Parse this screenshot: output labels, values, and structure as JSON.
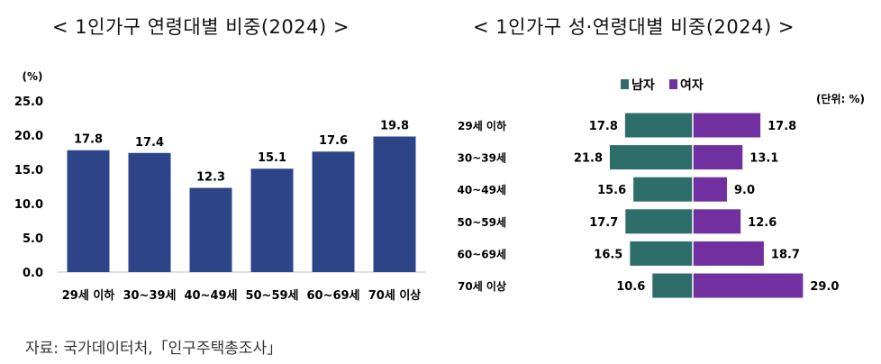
{
  "source": "자료: 국가데이터처,「인구주택총조사」",
  "colors": {
    "bar": "#2e4488",
    "male": "#2e6e6a",
    "female": "#7030a0"
  },
  "chart_data": [
    {
      "type": "bar",
      "title": "< 1인가구 연령대별 비중(2024) >",
      "ylabel": "(%)",
      "categories": [
        "29세 이하",
        "30~39세",
        "40~49세",
        "50~59세",
        "60~69세",
        "70세 이상"
      ],
      "values": [
        17.8,
        17.4,
        12.3,
        15.1,
        17.6,
        19.8
      ],
      "value_labels": [
        "17.8",
        "17.4",
        "12.3",
        "15.1",
        "17.6",
        "19.8"
      ],
      "yticks": [
        "0.0",
        "5.0",
        "10.0",
        "15.0",
        "20.0",
        "25.0"
      ],
      "ylim": [
        0,
        25
      ]
    },
    {
      "type": "bar",
      "orientation": "horizontal-diverging",
      "title": "< 1인가구 성·연령대별 비중(2024) >",
      "unit": "(단위: %)",
      "legend_position": "top",
      "categories": [
        "29세 이하",
        "30~39세",
        "40~49세",
        "50~59세",
        "60~69세",
        "70세 이상"
      ],
      "series": [
        {
          "name": "남자",
          "values": [
            17.8,
            21.8,
            15.6,
            17.7,
            16.5,
            10.6
          ],
          "labels": [
            "17.8",
            "21.8",
            "15.6",
            "17.7",
            "16.5",
            "10.6"
          ]
        },
        {
          "name": "여자",
          "values": [
            17.8,
            13.1,
            9.0,
            12.6,
            18.7,
            29.0
          ],
          "labels": [
            "17.8",
            "13.1",
            "9.0",
            "12.6",
            "18.7",
            "29.0"
          ]
        }
      ]
    }
  ]
}
